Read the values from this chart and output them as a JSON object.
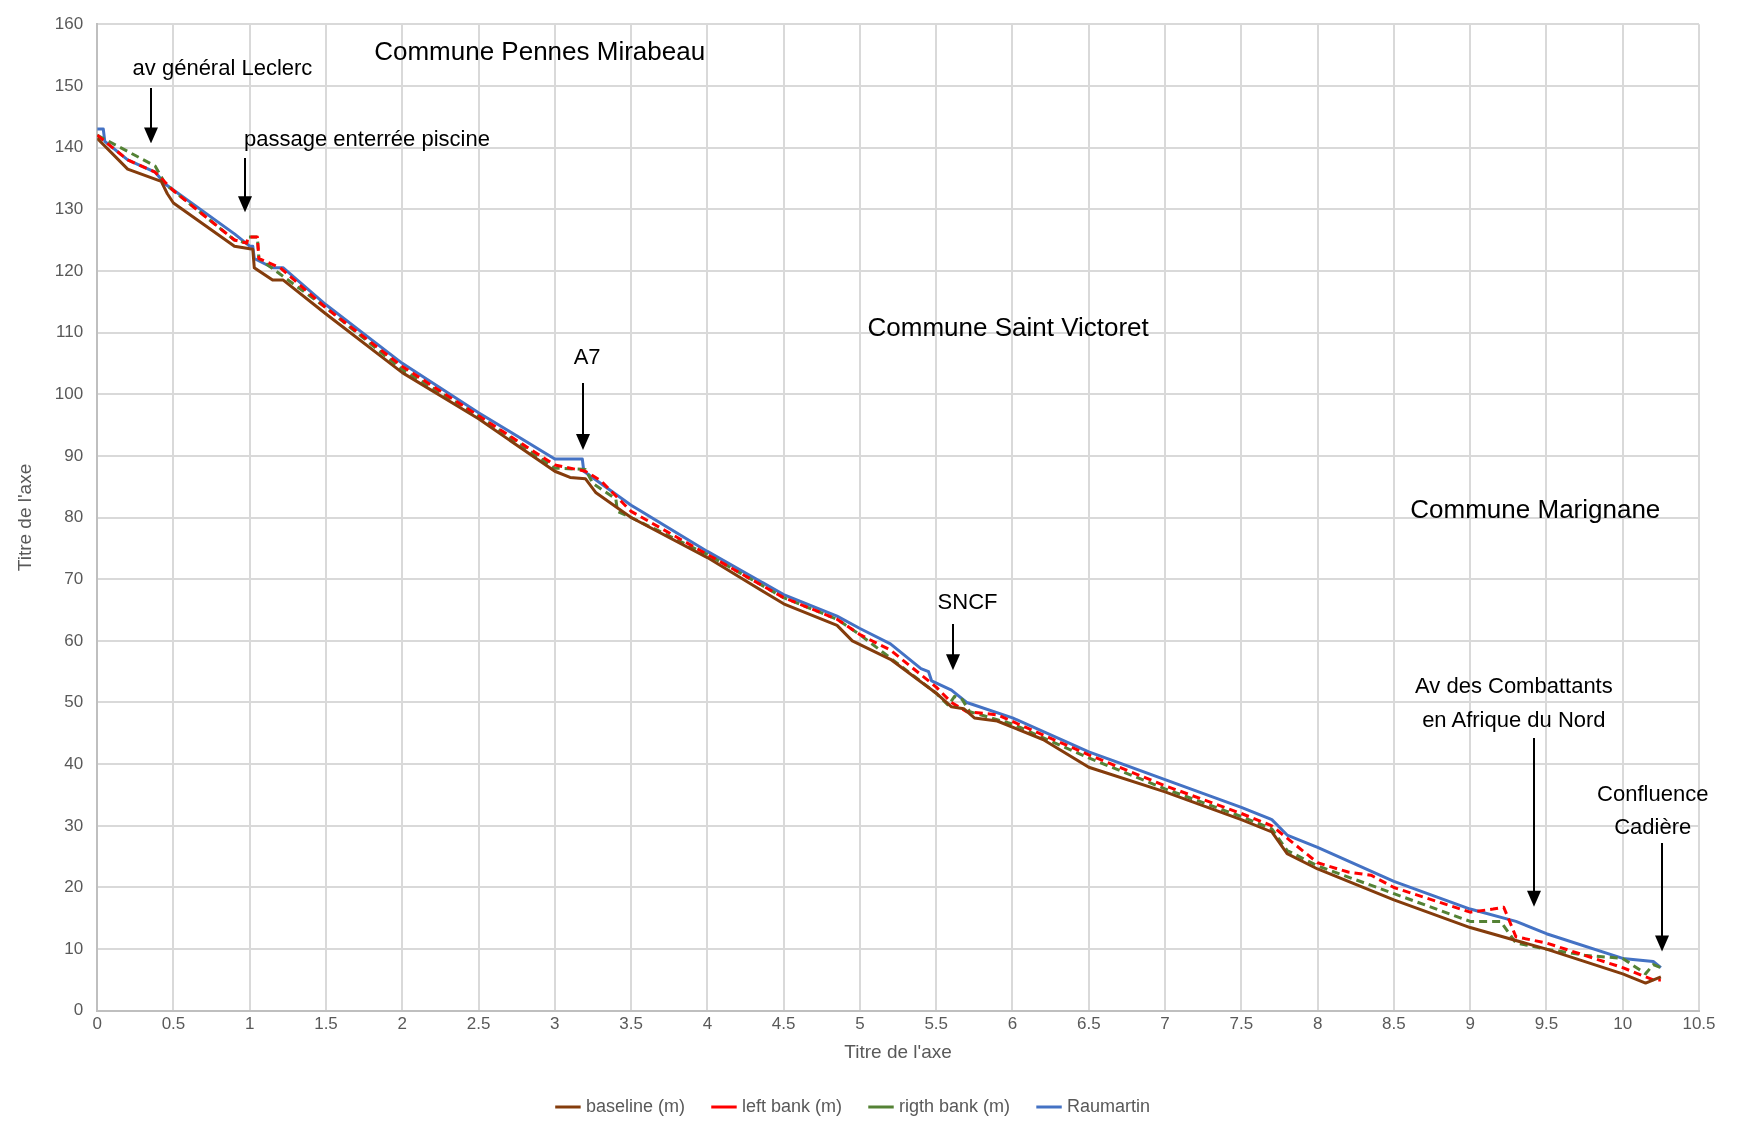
{
  "chart_data": {
    "type": "line",
    "xlabel": "Titre de l'axe",
    "ylabel": "Titre de l'axe",
    "xlim": [
      0,
      10.5
    ],
    "ylim": [
      0,
      160
    ],
    "xticks": [
      0,
      0.5,
      1,
      1.5,
      2,
      2.5,
      3,
      3.5,
      4,
      4.5,
      5,
      5.5,
      6,
      6.5,
      7,
      7.5,
      8,
      8.5,
      9,
      9.5,
      10,
      10.5
    ],
    "yticks": [
      0,
      10,
      20,
      30,
      40,
      50,
      60,
      70,
      80,
      90,
      100,
      110,
      120,
      130,
      140,
      150,
      160
    ],
    "grid": true,
    "legend": "bottom",
    "marker": "none",
    "series": [
      {
        "name": "baseline (m)",
        "color": "#843c0c",
        "line_style": "solid",
        "x": [
          0,
          0.2,
          0.42,
          0.46,
          0.5,
          0.9,
          1.02,
          1.03,
          1.15,
          1.22,
          1.5,
          2,
          2.5,
          3,
          3.1,
          3.2,
          3.27,
          3.5,
          4,
          4.5,
          4.85,
          4.95,
          5.2,
          5.5,
          5.6,
          5.68,
          5.75,
          5.9,
          6.2,
          6.5,
          7,
          7.5,
          7.7,
          7.8,
          8,
          8.5,
          9,
          9.5,
          10,
          10.15,
          10.25
        ],
        "values": [
          141.5,
          136.5,
          134.5,
          132.5,
          131,
          124,
          123.5,
          120.5,
          118.5,
          118.5,
          113,
          103.5,
          96,
          87.5,
          86.5,
          86.3,
          84,
          80,
          73.5,
          66,
          62.5,
          60,
          57,
          51.5,
          49.3,
          49,
          47.5,
          47,
          44,
          39.5,
          35.5,
          31,
          29,
          25.5,
          23,
          18,
          13.5,
          10,
          6,
          4.5,
          5.5
        ]
      },
      {
        "name": "left bank (m)",
        "color": "#ff0000",
        "line_style": "dashed",
        "x": [
          0,
          0.2,
          0.38,
          0.5,
          0.9,
          0.98,
          0.99,
          1.05,
          1.06,
          1.2,
          1.5,
          2,
          2.5,
          3,
          3.2,
          3.3,
          3.5,
          4,
          4.5,
          4.85,
          5,
          5.2,
          5.5,
          5.6,
          5.7,
          5.9,
          6.5,
          7,
          7.5,
          7.7,
          7.8,
          8,
          8.2,
          8.35,
          8.5,
          9,
          9.15,
          9.22,
          9.3,
          9.5,
          10,
          10.2,
          10.25
        ],
        "values": [
          142,
          138,
          136,
          133,
          125,
          124.5,
          125.5,
          125.5,
          122,
          120.5,
          114,
          104.5,
          96.5,
          88.5,
          87.5,
          86,
          81,
          74,
          67,
          63.5,
          61,
          58.5,
          52.5,
          50,
          48.5,
          48,
          41.5,
          36.5,
          32,
          30,
          28,
          24,
          22.5,
          22,
          20,
          16,
          16.5,
          16.8,
          12,
          11,
          7,
          5,
          5
        ]
      },
      {
        "name": "rigth bank (m)",
        "color": "#548235",
        "line_style": "dashed",
        "x": [
          0,
          0.38,
          0.45,
          0.9,
          0.98,
          0.99,
          1.05,
          1.06,
          1.5,
          2,
          2.5,
          3,
          3.2,
          3.25,
          3.4,
          3.41,
          3.5,
          4,
          4.5,
          4.85,
          5,
          5.5,
          5.58,
          5.62,
          5.67,
          5.72,
          6,
          6.5,
          7,
          7.5,
          7.7,
          7.8,
          8,
          8.5,
          9,
          9.2,
          9.3,
          9.5,
          9.75,
          10,
          10.15,
          10.2,
          10.25
        ],
        "values": [
          142,
          137,
          134,
          125,
          124.5,
          125.5,
          125.5,
          122,
          114,
          104,
          96.5,
          88,
          87.8,
          85.5,
          83,
          81,
          80,
          74,
          67,
          63.5,
          61,
          51.5,
          49.5,
          51,
          50.5,
          48.5,
          46.5,
          41,
          36,
          31.5,
          29.5,
          26,
          23.5,
          19,
          14.5,
          14.5,
          11,
          10,
          9,
          8.5,
          6,
          7.5,
          7
        ]
      },
      {
        "name": "Raumartin",
        "color": "#4472c4",
        "line_style": "solid",
        "x": [
          0,
          0.04,
          0.05,
          0.2,
          0.38,
          0.45,
          0.9,
          1,
          1.02,
          1.03,
          1.15,
          1.22,
          1.5,
          2,
          2.5,
          3,
          3.18,
          3.19,
          3.5,
          4,
          4.5,
          4.85,
          5,
          5.2,
          5.4,
          5.45,
          5.47,
          5.6,
          5.7,
          6,
          6.5,
          7,
          7.5,
          7.7,
          7.8,
          8,
          8.5,
          9,
          9.3,
          9.5,
          10,
          10.2,
          10.25
        ],
        "values": [
          143,
          143,
          141,
          138,
          136,
          134,
          126,
          124,
          124,
          122,
          120.5,
          120.5,
          114.5,
          105,
          97,
          89.5,
          89.5,
          87.5,
          82,
          74.5,
          67.5,
          64,
          62,
          59.5,
          55.5,
          55,
          53.5,
          52,
          50,
          47.5,
          42,
          37.5,
          33,
          31,
          28.5,
          26.5,
          21,
          16.5,
          14.5,
          12.5,
          8.5,
          8,
          7
        ]
      }
    ],
    "annotations": [
      "Commune Pennes Mirabeau",
      "av général Leclerc",
      "passage enterrée piscine",
      "A7",
      "Commune Saint Victoret",
      "SNCF",
      "Commune Marignane",
      "Av des Combattants\nen Afrique du Nord",
      "Confluence\nCadière"
    ]
  }
}
